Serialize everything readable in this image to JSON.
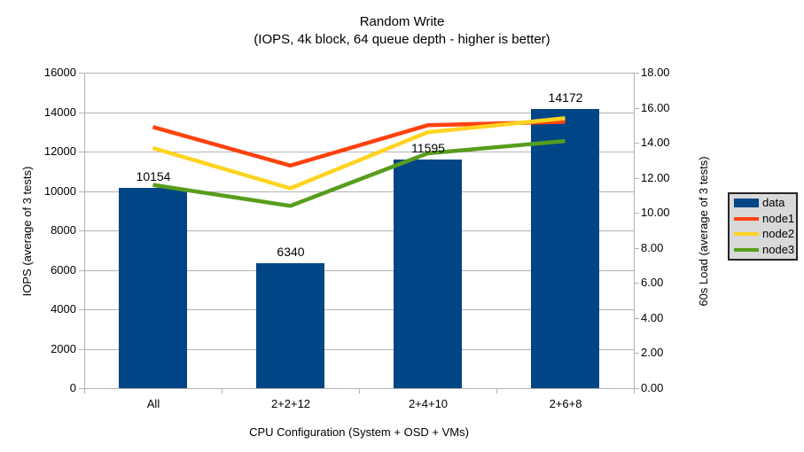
{
  "chart_data": {
    "type": "bar+line",
    "title": "Random Write",
    "subtitle": "(IOPS, 4k block, 64 queue depth - higher is better)",
    "categories": [
      "All",
      "2+2+12",
      "2+4+10",
      "2+6+8"
    ],
    "bar_series": {
      "name": "data",
      "color": "#004586",
      "axis": "left",
      "values": [
        10154,
        6340,
        11595,
        14172
      ],
      "data_labels": [
        "10154",
        "6340",
        "11595",
        "14172"
      ]
    },
    "line_series": [
      {
        "name": "node1",
        "color": "#ff420e",
        "axis": "right",
        "values": [
          14.9,
          12.7,
          15.0,
          15.2
        ]
      },
      {
        "name": "node2",
        "color": "#ffd320",
        "axis": "right",
        "values": [
          13.7,
          11.4,
          14.6,
          15.4
        ]
      },
      {
        "name": "node3",
        "color": "#579d1c",
        "axis": "right",
        "values": [
          11.6,
          10.4,
          13.4,
          14.1
        ]
      }
    ],
    "left_axis": {
      "title": "IOPS (average of 3 tests)",
      "min": 0,
      "max": 16000,
      "tick_step": 2000,
      "tick_labels": [
        "0",
        "2000",
        "4000",
        "6000",
        "8000",
        "10000",
        "12000",
        "14000",
        "16000"
      ]
    },
    "right_axis": {
      "title": "60s Load (average of 3 tests)",
      "min": 0,
      "max": 18,
      "tick_step": 2,
      "tick_labels": [
        "0.00",
        "2.00",
        "4.00",
        "6.00",
        "8.00",
        "10.00",
        "12.00",
        "14.00",
        "16.00",
        "18.00"
      ]
    },
    "x_axis": {
      "title": "CPU Configuration (System + OSD + VMs)"
    },
    "legend": {
      "position": "right",
      "items": [
        "data",
        "node1",
        "node2",
        "node3"
      ]
    },
    "layout_hints": {
      "grid": "horizontal",
      "higher_is_better": true
    },
    "colors": {
      "grid": "#b3b3b3",
      "axis": "#b3b3b3",
      "background": "#ffffff",
      "text": "#000000",
      "legend_bg": "#d9d9d9",
      "legend_border": "#262626"
    }
  }
}
